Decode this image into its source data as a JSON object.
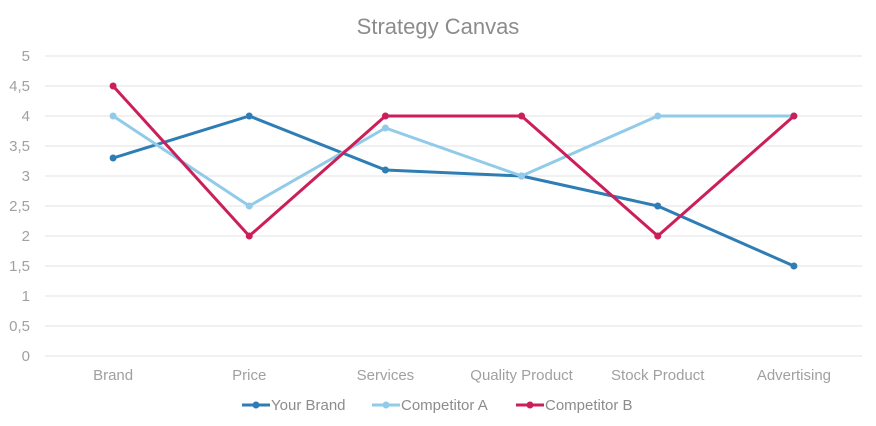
{
  "chart_data": {
    "type": "line",
    "title": "Strategy Canvas",
    "xlabel": "",
    "ylabel": "",
    "categories": [
      "Brand",
      "Price",
      "Services",
      "Quality Product",
      "Stock Product",
      "Advertising"
    ],
    "ylim": [
      0,
      5
    ],
    "yticks": [
      "0",
      "0,5",
      "1",
      "1,5",
      "2",
      "2,5",
      "3",
      "3,5",
      "4",
      "4,5",
      "5"
    ],
    "ytick_values": [
      0,
      0.5,
      1,
      1.5,
      2,
      2.5,
      3,
      3.5,
      4,
      4.5,
      5
    ],
    "grid": true,
    "legend_position": "bottom",
    "series": [
      {
        "name": "Your Brand",
        "color": "#2e7db5",
        "values": [
          3.3,
          4,
          3.1,
          3,
          2.5,
          1.5
        ]
      },
      {
        "name": "Competitor A",
        "color": "#92cbea",
        "values": [
          4,
          2.5,
          3.8,
          3,
          4,
          4
        ]
      },
      {
        "name": "Competitor B",
        "color": "#cc1f5a",
        "values": [
          4.5,
          2,
          4,
          4,
          2,
          4
        ]
      }
    ]
  }
}
